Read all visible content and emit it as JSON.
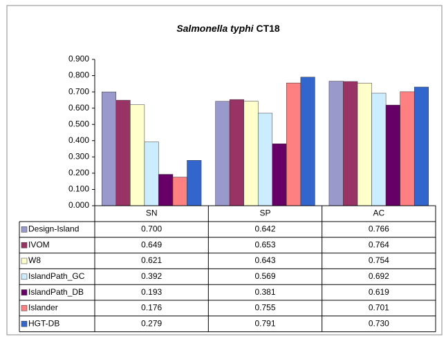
{
  "chart_data": {
    "type": "bar",
    "title": [
      "Salmonella typhi",
      "CT18"
    ],
    "categories": [
      "SN",
      "SP",
      "AC"
    ],
    "series": [
      {
        "name": "Design-Island",
        "color": "#9999cc",
        "values": [
          0.7,
          0.642,
          0.766
        ],
        "value_labels": [
          "0.700",
          "0.642",
          "0.766"
        ]
      },
      {
        "name": "IVOM",
        "color": "#993366",
        "values": [
          0.649,
          0.653,
          0.764
        ],
        "value_labels": [
          "0.649",
          "0.653",
          "0.764"
        ]
      },
      {
        "name": "W8",
        "color": "#ffffcc",
        "values": [
          0.621,
          0.643,
          0.754
        ],
        "value_labels": [
          "0.621",
          "0.643",
          "0.754"
        ]
      },
      {
        "name": "IslandPath_GC",
        "color": "#ccecff",
        "values": [
          0.392,
          0.569,
          0.692
        ],
        "value_labels": [
          "0.392",
          "0.569",
          "0.692"
        ]
      },
      {
        "name": "IslandPath_DB",
        "color": "#660066",
        "values": [
          0.193,
          0.381,
          0.619
        ],
        "value_labels": [
          "0.193",
          "0.381",
          "0.619"
        ]
      },
      {
        "name": "Islander",
        "color": "#ff8080",
        "values": [
          0.176,
          0.755,
          0.701
        ],
        "value_labels": [
          "0.176",
          "0.755",
          "0.701"
        ]
      },
      {
        "name": "HGT-DB",
        "color": "#3366cc",
        "values": [
          0.279,
          0.791,
          0.73
        ],
        "value_labels": [
          "0.279",
          "0.791",
          "0.730"
        ]
      }
    ],
    "ylim": [
      0,
      0.9
    ],
    "yticks": [
      {
        "value": 0,
        "label": "0.000"
      },
      {
        "value": 0.1,
        "label": "0.100"
      },
      {
        "value": 0.2,
        "label": "0.200"
      },
      {
        "value": 0.3,
        "label": "0.300"
      },
      {
        "value": 0.4,
        "label": "0.400"
      },
      {
        "value": 0.5,
        "label": "0.500"
      },
      {
        "value": 0.6,
        "label": "0.600"
      },
      {
        "value": 0.7,
        "label": "0.700"
      },
      {
        "value": 0.8,
        "label": "0.800"
      },
      {
        "value": 0.9,
        "label": "0.900"
      }
    ],
    "grid": false
  }
}
